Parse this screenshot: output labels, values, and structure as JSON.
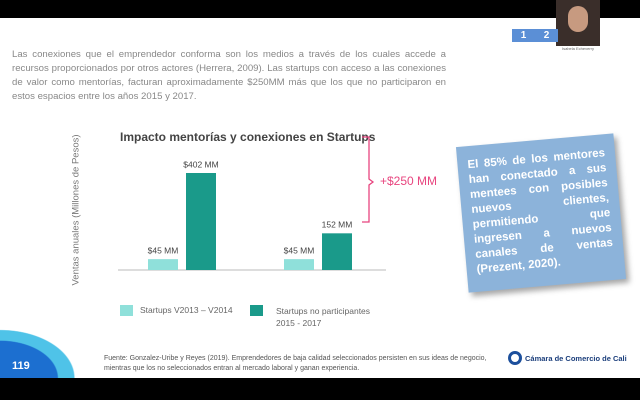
{
  "window": {
    "page_numbers": [
      "1",
      "2"
    ],
    "presenter_name": "Isabela Echeverry"
  },
  "slide": {
    "paragraph": "Las conexiones que el emprendedor conforma son los medios a través de los cuales accede a recursos proporcionados por otros actores (Herrera, 2009). Las startups con acceso a las conexiones de valor como mentorías, facturan aproximadamente $250MM más que los que no participaron en estos espacios entre los años 2015 y 2017.",
    "callout": "El 85% de los mentores han conectado a sus mentees con posibles nuevos clientes, permitiendo que ingresen a nuevos canales de ventas (Prezent, 2020).",
    "source": "Fuente: Gonzalez-Uribe y Reyes (2019). Emprendedores de baja calidad seleccionados persisten en sus ideas de negocio, mientras que los no seleccionados entran al mercado laboral y ganan experiencia.",
    "logo": "Cámara de Comercio de Cali",
    "slide_number": "119"
  },
  "chart_data": {
    "type": "bar",
    "title": "Impacto mentorías y conexiones en Startups",
    "y_label": "Ventas anuales (Millones de Pesos)",
    "annotation": "+$250 MM",
    "categories": [
      null,
      null
    ],
    "series": [
      {
        "name": "Startups V2013 – V2014",
        "color": "#8fe0da",
        "values": [
          45,
          45
        ],
        "value_labels": [
          "$45 MM",
          "$45 MM"
        ]
      },
      {
        "name": "Startups no participantes 2015 - 2017",
        "color": "#1a9a8a",
        "values": [
          402,
          152
        ],
        "value_labels": [
          "$402 MM",
          "152 MM"
        ]
      }
    ]
  }
}
